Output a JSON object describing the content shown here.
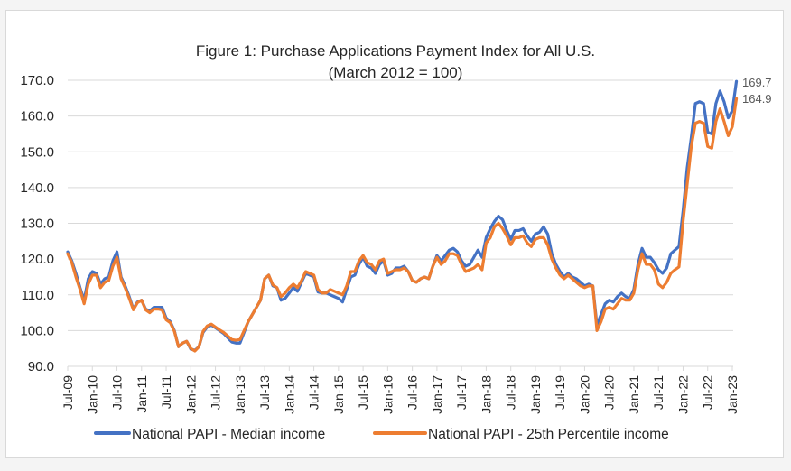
{
  "chart_data": {
    "type": "line",
    "title": "Figure 1: Purchase Applications Payment Index for All U.S.",
    "subtitle": "(March 2012 = 100)",
    "xlabel": "",
    "ylabel": "",
    "ylim": [
      90,
      170
    ],
    "yticks": [
      "90.0",
      "100.0",
      "110.0",
      "120.0",
      "130.0",
      "140.0",
      "150.0",
      "160.0",
      "170.0"
    ],
    "ytick_values": [
      90,
      100,
      110,
      120,
      130,
      140,
      150,
      160,
      170
    ],
    "grid": true,
    "legend_position": "bottom",
    "x_start": "Jul-09",
    "x_frequency": "monthly",
    "xticks": [
      "Jul-09",
      "Jan-10",
      "Jul-10",
      "Jan-11",
      "Jul-11",
      "Jan-12",
      "Jul-12",
      "Jan-13",
      "Jul-13",
      "Jan-14",
      "Jul-14",
      "Jan-15",
      "Jul-15",
      "Jan-16",
      "Jul-16",
      "Jan-17",
      "Jul-17",
      "Jan-18",
      "Jul-18",
      "Jan-19",
      "Jul-19",
      "Jan-20",
      "Jul-20",
      "Jan-21",
      "Jul-21",
      "Jan-22",
      "Jul-22",
      "Jan-23"
    ],
    "series": [
      {
        "name": "National PAPI - Median income",
        "color": "#4472c4",
        "end_label": "169.7",
        "values": [
          122.0,
          119.5,
          116.0,
          112.0,
          108.5,
          114.5,
          116.5,
          116.0,
          113.0,
          114.5,
          115.0,
          119.5,
          122.0,
          115.0,
          112.5,
          109.5,
          106.0,
          108.0,
          108.5,
          106.0,
          105.5,
          106.5,
          106.5,
          106.5,
          103.5,
          102.5,
          100.0,
          95.5,
          96.5,
          97.0,
          94.8,
          94.5,
          95.5,
          99.5,
          101.0,
          101.5,
          100.8,
          100.0,
          99.2,
          98.0,
          96.8,
          96.5,
          96.5,
          99.5,
          102.5,
          104.5,
          106.5,
          108.5,
          114.5,
          115.5,
          112.5,
          112.0,
          108.5,
          109.0,
          110.5,
          112.0,
          111.0,
          113.5,
          116.0,
          115.5,
          115.0,
          110.8,
          110.5,
          110.5,
          110.0,
          109.5,
          109.0,
          108.0,
          111.5,
          115.0,
          115.5,
          118.5,
          120.5,
          118.0,
          117.5,
          116.0,
          118.5,
          119.5,
          115.5,
          116.0,
          117.5,
          117.5,
          118.0,
          116.5,
          114.0,
          113.5,
          114.5,
          115.0,
          114.5,
          118.0,
          121.0,
          119.5,
          121.0,
          122.5,
          123.0,
          122.0,
          119.5,
          118.0,
          118.5,
          120.5,
          122.5,
          120.5,
          126.0,
          128.5,
          130.5,
          132.0,
          131.0,
          128.0,
          125.5,
          128.0,
          128.0,
          128.5,
          126.5,
          125.0,
          127.0,
          127.5,
          129.0,
          127.0,
          121.5,
          118.5,
          116.5,
          115.0,
          116.0,
          115.0,
          114.5,
          113.5,
          112.5,
          113.0,
          112.5,
          101.5,
          104.5,
          107.5,
          108.5,
          108.0,
          109.5,
          110.5,
          109.5,
          109.0,
          111.5,
          118.5,
          123.0,
          120.5,
          120.5,
          119.0,
          117.0,
          116.0,
          117.5,
          121.5,
          122.5,
          123.5,
          133.5,
          145.5,
          154.0,
          163.5,
          164.0,
          163.5,
          155.5,
          155.0,
          163.5,
          167.0,
          164.0,
          159.5,
          161.5,
          169.7
        ]
      },
      {
        "name": "National PAPI - 25th Percentile income",
        "color": "#ed7d31",
        "end_label": "164.9",
        "values": [
          121.5,
          119.0,
          115.0,
          111.5,
          107.5,
          113.0,
          115.5,
          115.5,
          112.0,
          113.5,
          114.0,
          118.0,
          120.5,
          114.5,
          112.0,
          109.0,
          105.8,
          107.8,
          108.5,
          105.8,
          105.0,
          106.0,
          106.0,
          105.8,
          103.0,
          102.2,
          99.8,
          95.5,
          96.5,
          97.0,
          95.0,
          94.3,
          95.5,
          99.8,
          101.3,
          101.8,
          101.0,
          100.2,
          99.5,
          98.5,
          97.5,
          97.3,
          97.5,
          100.0,
          102.5,
          104.5,
          106.5,
          108.5,
          114.5,
          115.5,
          112.8,
          112.0,
          109.5,
          110.5,
          112.0,
          113.0,
          112.0,
          114.0,
          116.5,
          116.0,
          115.5,
          111.5,
          110.5,
          110.5,
          111.5,
          111.0,
          110.5,
          110.0,
          112.5,
          116.5,
          116.5,
          119.5,
          121.0,
          119.0,
          118.5,
          117.0,
          119.5,
          120.0,
          116.0,
          116.5,
          117.0,
          117.0,
          117.5,
          116.5,
          114.0,
          113.5,
          114.5,
          115.0,
          114.5,
          118.0,
          120.5,
          118.5,
          119.5,
          121.5,
          121.5,
          121.0,
          118.5,
          116.5,
          117.0,
          117.5,
          118.5,
          117.0,
          124.5,
          126.0,
          129.0,
          130.0,
          128.5,
          126.5,
          124.0,
          126.0,
          126.0,
          126.5,
          124.5,
          123.5,
          125.5,
          126.0,
          126.0,
          124.0,
          120.0,
          117.5,
          115.5,
          114.5,
          115.5,
          114.5,
          113.5,
          112.5,
          112.0,
          112.5,
          112.5,
          100.0,
          102.5,
          106.0,
          106.5,
          106.0,
          107.5,
          109.0,
          108.5,
          108.5,
          110.5,
          117.0,
          121.5,
          118.5,
          118.5,
          117.0,
          113.0,
          112.0,
          113.5,
          116.0,
          117.0,
          117.8,
          130.5,
          141.0,
          151.5,
          158.0,
          158.5,
          158.0,
          151.5,
          151.0,
          158.5,
          162.0,
          158.5,
          154.5,
          157.0,
          164.9
        ]
      }
    ]
  }
}
